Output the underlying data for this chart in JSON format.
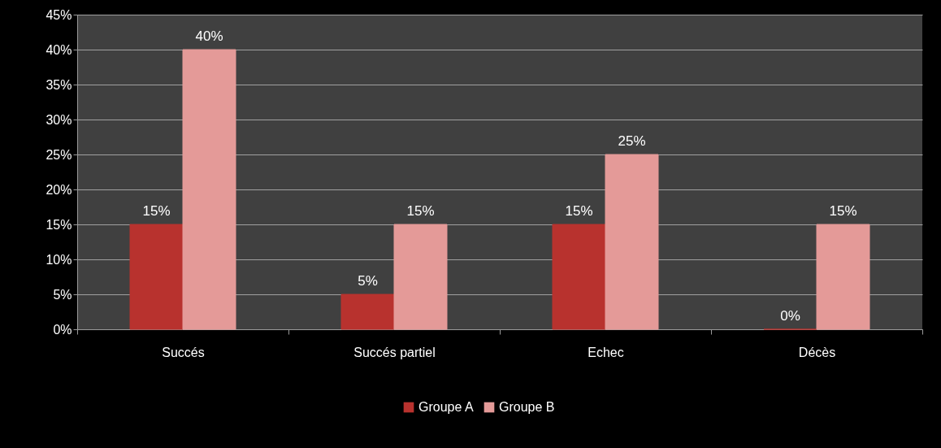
{
  "chart_data": {
    "type": "bar",
    "categories": [
      "Succés",
      "Succés partiel",
      "Echec",
      "Décès"
    ],
    "series": [
      {
        "name": "Groupe A",
        "color": "#b8322e",
        "values": [
          15,
          5,
          15,
          0
        ],
        "value_labels": [
          "15%",
          "5%",
          "15%",
          "0%"
        ]
      },
      {
        "name": "Groupe B",
        "color": "#e49a98",
        "values": [
          40,
          15,
          25,
          15
        ],
        "value_labels": [
          "40%",
          "15%",
          "25%",
          "15%"
        ]
      }
    ],
    "ylim": [
      0,
      45
    ],
    "yticks": [
      {
        "value": 0,
        "label": "0%"
      },
      {
        "value": 5,
        "label": "5%"
      },
      {
        "value": 10,
        "label": "10%"
      },
      {
        "value": 15,
        "label": "15%"
      },
      {
        "value": 20,
        "label": "20%"
      },
      {
        "value": 25,
        "label": "25%"
      },
      {
        "value": 30,
        "label": "30%"
      },
      {
        "value": 35,
        "label": "35%"
      },
      {
        "value": 40,
        "label": "40%"
      },
      {
        "value": 45,
        "label": "45%"
      }
    ],
    "grid": "y",
    "legend": "bottom"
  }
}
